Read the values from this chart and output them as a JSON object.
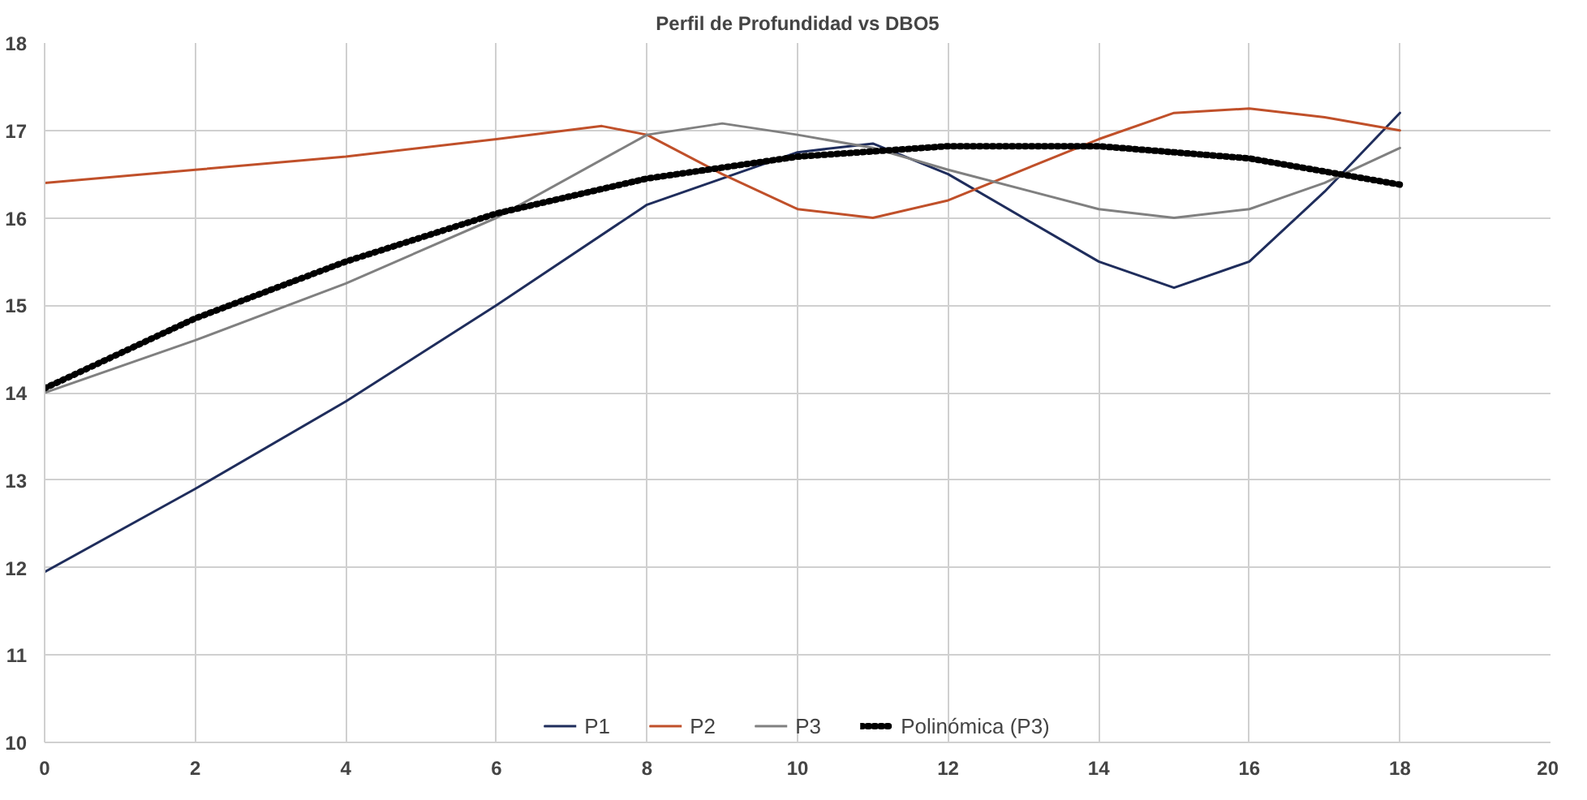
{
  "chart_data": {
    "type": "line",
    "title": "Perfil de Profundidad vs DBO5",
    "xlim": [
      0,
      20
    ],
    "xticks": [
      0,
      2,
      4,
      6,
      8,
      10,
      12,
      14,
      16,
      18,
      20
    ],
    "ylim": [
      10,
      18
    ],
    "yticks": [
      10,
      11,
      12,
      13,
      14,
      15,
      16,
      17,
      18
    ],
    "grid": true,
    "legend": "bottom",
    "line_style": "solid",
    "marker": "none",
    "series": [
      {
        "name": "P1",
        "color": "#1f2d5c",
        "x": [
          0,
          2,
          4,
          6,
          8,
          10,
          11,
          12,
          14,
          15,
          16,
          17,
          18
        ],
        "values": [
          11.95,
          12.9,
          13.9,
          15.0,
          16.15,
          16.75,
          16.85,
          16.5,
          15.5,
          15.2,
          15.5,
          16.3,
          17.2
        ]
      },
      {
        "name": "P2",
        "color": "#c0502a",
        "x": [
          0,
          2,
          4,
          6,
          7.4,
          8,
          9,
          10,
          11,
          12,
          14,
          15,
          16,
          17,
          18
        ],
        "values": [
          16.4,
          16.55,
          16.7,
          16.9,
          17.05,
          16.95,
          16.5,
          16.1,
          16.0,
          16.2,
          16.9,
          17.2,
          17.25,
          17.15,
          17.0
        ]
      },
      {
        "name": "P3",
        "color": "#808080",
        "x": [
          0,
          2,
          4,
          6,
          8,
          9,
          10,
          11,
          12,
          14,
          15,
          16,
          17,
          18
        ],
        "values": [
          14.0,
          14.6,
          15.25,
          16.0,
          16.95,
          17.08,
          16.95,
          16.8,
          16.55,
          16.1,
          16.0,
          16.1,
          16.4,
          16.8
        ]
      },
      {
        "name": "Polinómica (P3)",
        "color": "#000000",
        "line_style": "dotted",
        "x": [
          0,
          2,
          4,
          6,
          8,
          10,
          12,
          14,
          16,
          18
        ],
        "values": [
          14.05,
          14.85,
          15.5,
          16.05,
          16.45,
          16.7,
          16.82,
          16.82,
          16.68,
          16.38
        ]
      }
    ]
  }
}
